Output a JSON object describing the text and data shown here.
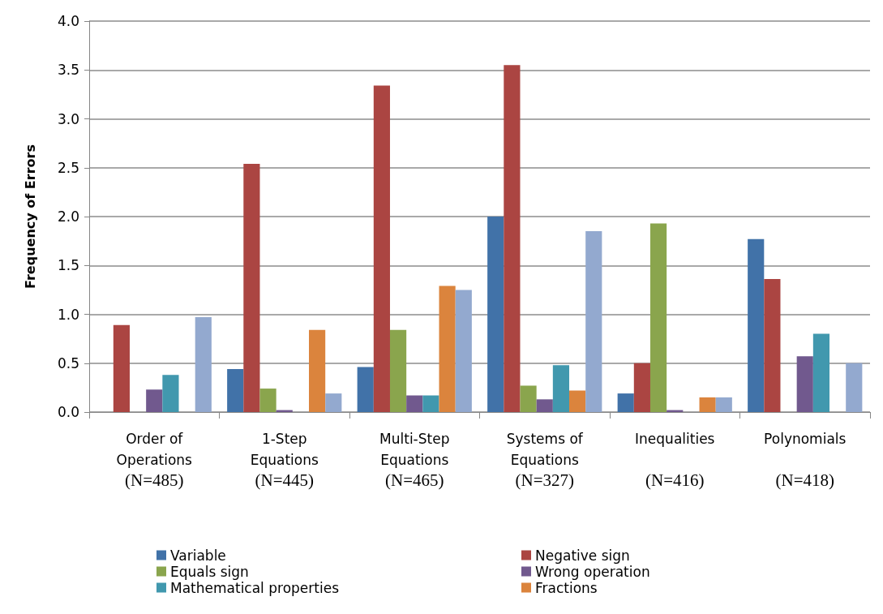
{
  "chart_data": {
    "type": "bar",
    "ylabel": "Frequency of Errors",
    "categories": [
      "Order of\nOperations\n(N=485)",
      "1-Step\nEquations\n(N=445)",
      "Multi-Step\nEquations\n(N=465)",
      "Systems of\nEquations\n(N=327)",
      "Inequalities\n\n(N=416)",
      "Polynomials\n\n(N=418)"
    ],
    "series": [
      {
        "name": "Variable",
        "color": "#4172a8",
        "values": [
          0,
          0.44,
          0.46,
          2.0,
          0.19,
          1.77
        ]
      },
      {
        "name": "Negative sign",
        "color": "#ab4542",
        "values": [
          0.89,
          2.54,
          3.34,
          3.55,
          0.5,
          1.36
        ]
      },
      {
        "name": "Equals sign",
        "color": "#8aa54d",
        "values": [
          0,
          0.24,
          0.84,
          0.27,
          1.93,
          0
        ]
      },
      {
        "name": "Wrong operation",
        "color": "#71598e",
        "values": [
          0.23,
          0.02,
          0.17,
          0.13,
          0.02,
          0.57
        ]
      },
      {
        "name": "Mathematical properties",
        "color": "#4198ae",
        "values": [
          0.38,
          0,
          0.17,
          0.48,
          0,
          0.8
        ]
      },
      {
        "name": "Fractions",
        "color": "#db843d",
        "values": [
          0,
          0.84,
          1.29,
          0.22,
          0.15,
          0
        ]
      },
      {
        "color": "#93a9cf",
        "values": [
          0.97,
          0.19,
          1.25,
          1.85,
          0.15,
          0.5
        ]
      }
    ],
    "ylim": [
      0,
      4
    ],
    "yticks": [
      {
        "value": 0,
        "label": "0.0"
      },
      {
        "value": 0.5,
        "label": "0.5"
      },
      {
        "value": 1,
        "label": "1.0"
      },
      {
        "value": 1.5,
        "label": "1.5"
      },
      {
        "value": 2,
        "label": "2.0"
      },
      {
        "value": 2.5,
        "label": "2.5"
      },
      {
        "value": 3,
        "label": "3.0"
      },
      {
        "value": 3.5,
        "label": "3.5"
      },
      {
        "value": 4,
        "label": "4.0"
      }
    ],
    "grid": "y",
    "legend": "bottom"
  }
}
